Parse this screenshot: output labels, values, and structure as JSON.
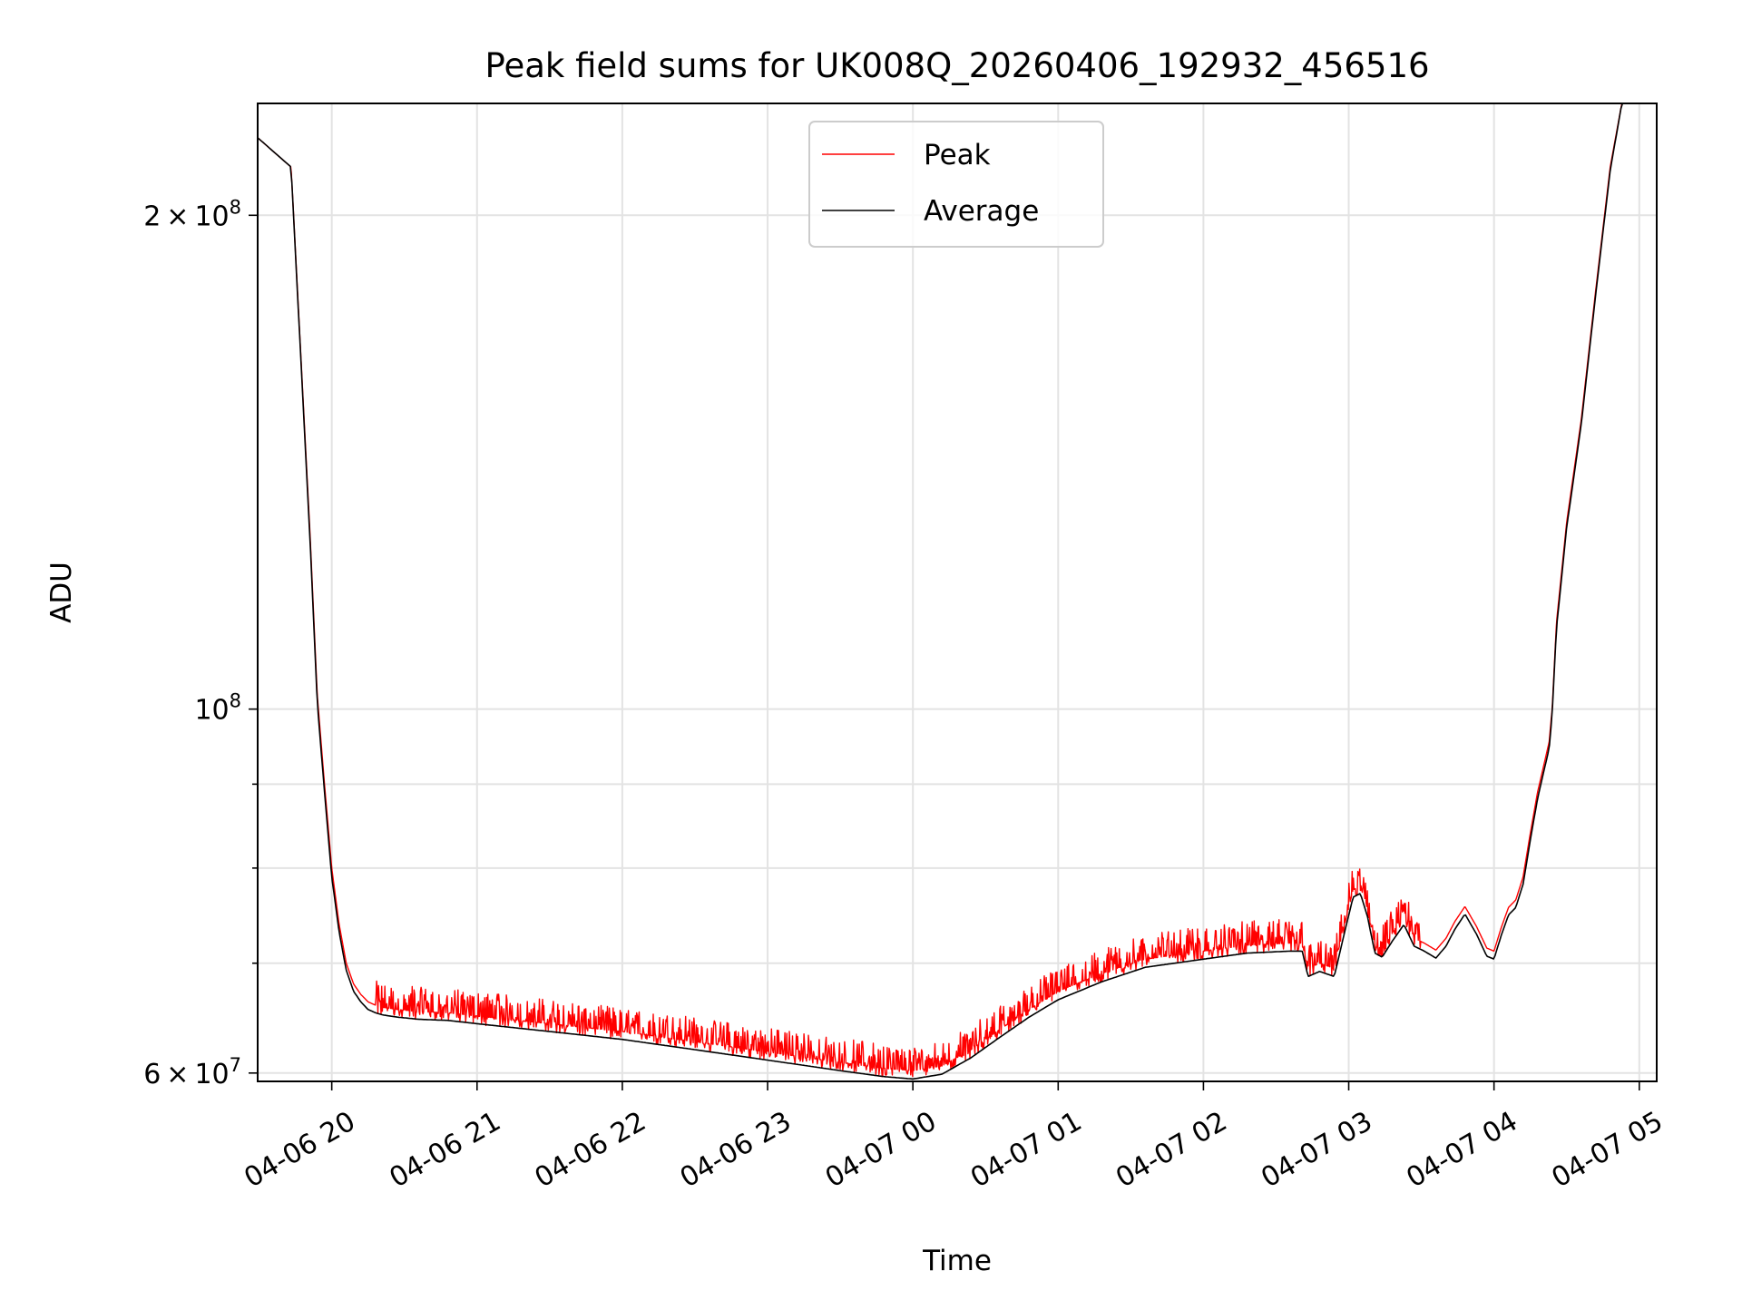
{
  "chart_data": {
    "type": "line",
    "title": "Peak field sums for UK008Q_20260406_192932_456516",
    "xlabel": "Time",
    "ylabel": "ADU",
    "yscale": "log",
    "ylim": [
      59300000,
      234000000
    ],
    "x_units": "hours since 2026-04-06 19:00",
    "xlim": [
      0.49,
      10.12
    ],
    "x_ticks": [
      {
        "value": 1,
        "label": "04-06 20"
      },
      {
        "value": 2,
        "label": "04-06 21"
      },
      {
        "value": 3,
        "label": "04-06 22"
      },
      {
        "value": 4,
        "label": "04-06 23"
      },
      {
        "value": 5,
        "label": "04-07 00"
      },
      {
        "value": 6,
        "label": "04-07 01"
      },
      {
        "value": 7,
        "label": "04-07 02"
      },
      {
        "value": 8,
        "label": "04-07 03"
      },
      {
        "value": 9,
        "label": "04-07 04"
      },
      {
        "value": 10,
        "label": "04-07 05"
      }
    ],
    "y_major_ticks": [
      {
        "value": 60000000,
        "mantissa": "6",
        "times": "×",
        "base": "10",
        "exp": "7"
      },
      {
        "value": 100000000,
        "mantissa": "",
        "times": "",
        "base": "10",
        "exp": "8"
      },
      {
        "value": 200000000,
        "mantissa": "2",
        "times": "×",
        "base": "10",
        "exp": "8"
      }
    ],
    "y_minor_ticks": [
      70000000,
      80000000,
      90000000
    ],
    "grid": true,
    "legend_position": "top-center",
    "series": [
      {
        "name": "Peak",
        "color": "#ff0000",
        "noise_band_start": 1.3,
        "noise_band_end": 8.5,
        "noise_amplitude": 0.035,
        "x": [
          0.49,
          0.72,
          0.85,
          0.9,
          0.95,
          1.0,
          1.05,
          1.1,
          1.15,
          1.2,
          1.25,
          1.3,
          1.35,
          1.45,
          1.6,
          1.8,
          2.0,
          2.5,
          3.0,
          3.5,
          4.0,
          4.5,
          4.8,
          5.0,
          5.2,
          5.4,
          5.6,
          5.8,
          6.0,
          6.3,
          6.6,
          7.0,
          7.3,
          7.6,
          7.68,
          7.72,
          7.8,
          7.9,
          7.97,
          8.03,
          8.08,
          8.13,
          8.18,
          8.23,
          8.3,
          8.38,
          8.45,
          8.52,
          8.6,
          8.67,
          8.73,
          8.8,
          8.88,
          8.95,
          9.0,
          9.05,
          9.1,
          9.15,
          9.2,
          9.25,
          9.3,
          9.35,
          9.38,
          9.4,
          9.43,
          9.5,
          9.6,
          9.7,
          9.8,
          9.88,
          10.12
        ],
        "y": [
          223000000,
          214000000,
          128000000,
          102000000,
          90000000,
          80000000,
          74000000,
          70000000,
          68000000,
          67000000,
          66300000,
          66000000,
          65800000,
          65600000,
          65400000,
          65300000,
          65000000,
          64300000,
          63600000,
          62700000,
          61800000,
          60900000,
          60400000,
          60200000,
          60600000,
          62000000,
          63800000,
          65600000,
          67300000,
          69000000,
          70400000,
          71200000,
          71800000,
          72000000,
          72000000,
          69500000,
          70000000,
          69500000,
          73800000,
          77600000,
          78000000,
          75500000,
          71800000,
          71400000,
          73000000,
          74700000,
          72500000,
          72000000,
          71300000,
          72500000,
          74200000,
          75800000,
          73700000,
          71500000,
          71200000,
          73600000,
          75700000,
          76500000,
          79000000,
          84000000,
          89000000,
          93000000,
          95500000,
          100000000,
          113000000,
          130000000,
          150000000,
          180000000,
          214000000,
          234000000,
          234000000
        ]
      },
      {
        "name": "Average",
        "color": "#000000",
        "x": [
          0.49,
          0.72,
          0.85,
          0.9,
          0.95,
          1.0,
          1.05,
          1.1,
          1.15,
          1.2,
          1.25,
          1.3,
          1.35,
          1.45,
          1.6,
          1.8,
          2.0,
          2.5,
          3.0,
          3.5,
          4.0,
          4.5,
          4.8,
          5.0,
          5.2,
          5.4,
          5.6,
          5.8,
          6.0,
          6.3,
          6.6,
          7.0,
          7.3,
          7.6,
          7.68,
          7.72,
          7.8,
          7.9,
          7.97,
          8.03,
          8.08,
          8.13,
          8.18,
          8.23,
          8.3,
          8.38,
          8.45,
          8.52,
          8.6,
          8.67,
          8.73,
          8.8,
          8.88,
          8.95,
          9.0,
          9.05,
          9.1,
          9.15,
          9.2,
          9.25,
          9.3,
          9.35,
          9.38,
          9.4,
          9.43,
          9.5,
          9.6,
          9.7,
          9.8,
          9.88,
          10.12
        ],
        "y": [
          223000000,
          214000000,
          127000000,
          101000000,
          89000000,
          79000000,
          73200000,
          69300000,
          67300000,
          66300000,
          65600000,
          65300000,
          65100000,
          64900000,
          64700000,
          64600000,
          64300000,
          63600000,
          62900000,
          62000000,
          61100000,
          60200000,
          59700000,
          59500000,
          59900000,
          61300000,
          63100000,
          64900000,
          66500000,
          68200000,
          69600000,
          70400000,
          71000000,
          71200000,
          71200000,
          68700000,
          69200000,
          68700000,
          73000000,
          76800000,
          77200000,
          74700000,
          71000000,
          70600000,
          72200000,
          73900000,
          71700000,
          71200000,
          70500000,
          71700000,
          73400000,
          75000000,
          72900000,
          70700000,
          70400000,
          72800000,
          74900000,
          75700000,
          78200000,
          83200000,
          88200000,
          92200000,
          94700000,
          99200000,
          112000000,
          129000000,
          149000000,
          179000000,
          213000000,
          234000000,
          234000000
        ]
      }
    ]
  }
}
